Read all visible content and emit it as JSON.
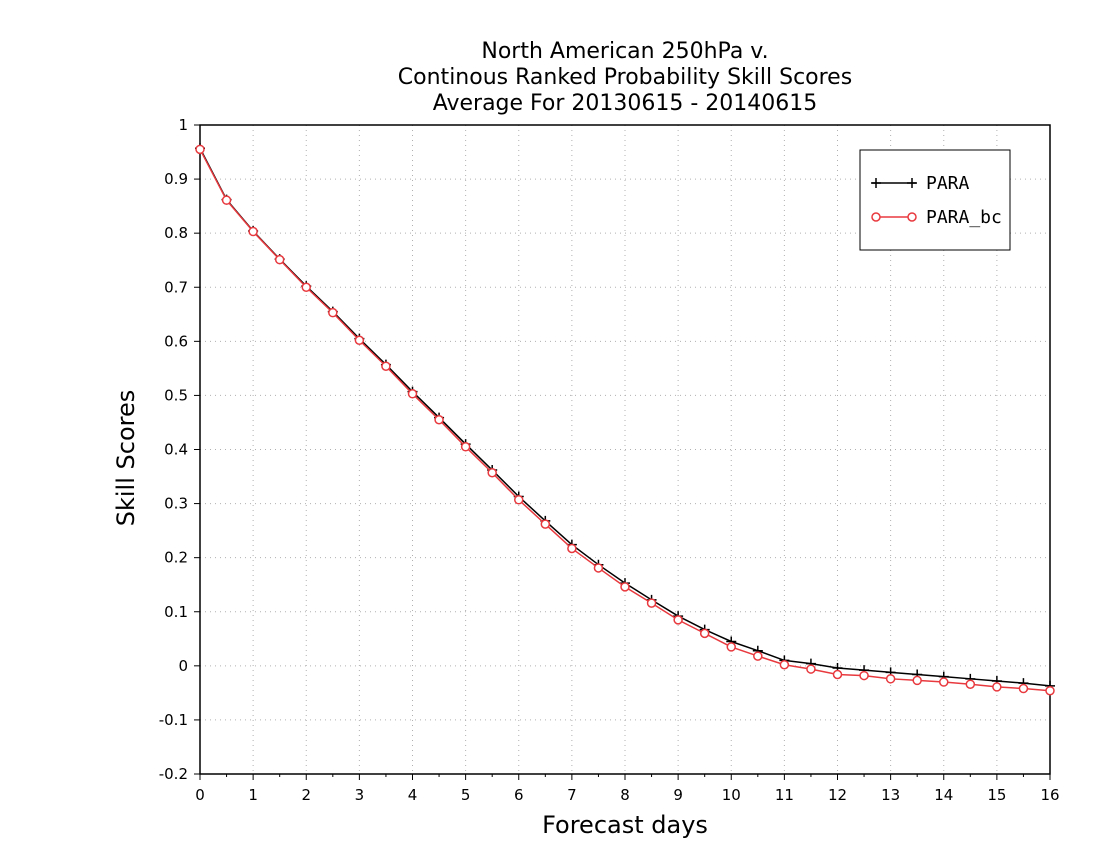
{
  "chart_data": {
    "type": "line",
    "title": [
      "North American 250hPa v.",
      "Continous Ranked Probability Skill Scores",
      "Average For 20130615 - 20140615"
    ],
    "xlabel": "Forecast days",
    "ylabel": "Skill Scores",
    "xlim": [
      0,
      16
    ],
    "ylim": [
      -0.2,
      1
    ],
    "xticks": [
      "0",
      "1",
      "2",
      "3",
      "4",
      "5",
      "6",
      "7",
      "8",
      "9",
      "10",
      "11",
      "12",
      "13",
      "14",
      "15",
      "16"
    ],
    "yticks": [
      "-0.2",
      "-0.1",
      "0",
      "0.1",
      "0.2",
      "0.3",
      "0.4",
      "0.5",
      "0.6",
      "0.7",
      "0.8",
      "0.9",
      "1"
    ],
    "grid": true,
    "legend_position": "top-right",
    "x": [
      0,
      0.5,
      1,
      1.5,
      2,
      2.5,
      3,
      3.5,
      4,
      4.5,
      5,
      5.5,
      6,
      6.5,
      7,
      7.5,
      8,
      8.5,
      9,
      9.5,
      10,
      10.5,
      11,
      11.5,
      12,
      12.5,
      13,
      13.5,
      14,
      14.5,
      15,
      15.5,
      16
    ],
    "series": [
      {
        "name": "PARA",
        "color": "#000000",
        "marker": "plus",
        "values": [
          0.957,
          0.862,
          0.804,
          0.752,
          0.702,
          0.655,
          0.605,
          0.557,
          0.507,
          0.459,
          0.41,
          0.362,
          0.313,
          0.268,
          0.224,
          0.187,
          0.153,
          0.122,
          0.092,
          0.067,
          0.045,
          0.028,
          0.01,
          0.004,
          -0.004,
          -0.008,
          -0.012,
          -0.016,
          -0.02,
          -0.024,
          -0.028,
          -0.032,
          -0.037
        ]
      },
      {
        "name": "PARA_bc",
        "color": "#e8393e",
        "marker": "circle",
        "values": [
          0.955,
          0.861,
          0.803,
          0.751,
          0.7,
          0.653,
          0.602,
          0.554,
          0.503,
          0.455,
          0.405,
          0.357,
          0.307,
          0.262,
          0.217,
          0.181,
          0.146,
          0.116,
          0.085,
          0.06,
          0.035,
          0.018,
          0.002,
          -0.006,
          -0.016,
          -0.018,
          -0.024,
          -0.027,
          -0.03,
          -0.034,
          -0.039,
          -0.042,
          -0.046
        ]
      }
    ]
  }
}
